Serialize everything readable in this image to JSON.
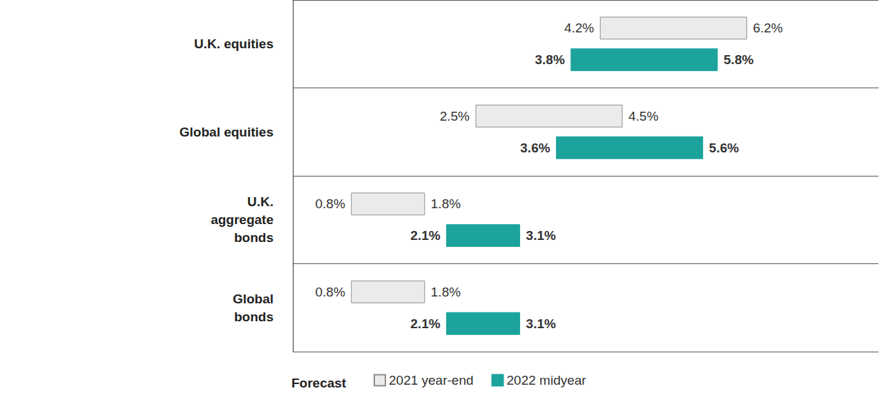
{
  "chart_data": {
    "type": "floating_bar",
    "orientation": "horizontal",
    "categories": [
      "U.K. equities",
      "Global equities",
      "U.K.\naggregate\nbonds",
      "Global\nbonds"
    ],
    "xlim": [
      0,
      8
    ],
    "tick_labels": false,
    "grid": false,
    "data_labels": true,
    "legend": "bottom",
    "legend_title": "Forecast",
    "series": [
      {
        "name": "2021 year-end",
        "color": "#ebebeb",
        "values": [
          [
            4.2,
            6.2
          ],
          [
            2.5,
            4.5
          ],
          [
            0.8,
            1.8
          ],
          [
            0.8,
            1.8
          ]
        ],
        "value_labels": [
          [
            "4.2%",
            "6.2%"
          ],
          [
            "2.5%",
            "4.5%"
          ],
          [
            "0.8%",
            "1.8%"
          ],
          [
            "0.8%",
            "1.8%"
          ]
        ]
      },
      {
        "name": "2022 midyear",
        "color": "#1ba39c",
        "values": [
          [
            3.8,
            5.8
          ],
          [
            3.6,
            5.6
          ],
          [
            2.1,
            3.1
          ],
          [
            2.1,
            3.1
          ]
        ],
        "value_labels": [
          [
            "3.8%",
            "5.8%"
          ],
          [
            "3.6%",
            "5.6%"
          ],
          [
            "2.1%",
            "3.1%"
          ],
          [
            "2.1%",
            "3.1%"
          ]
        ]
      }
    ]
  }
}
